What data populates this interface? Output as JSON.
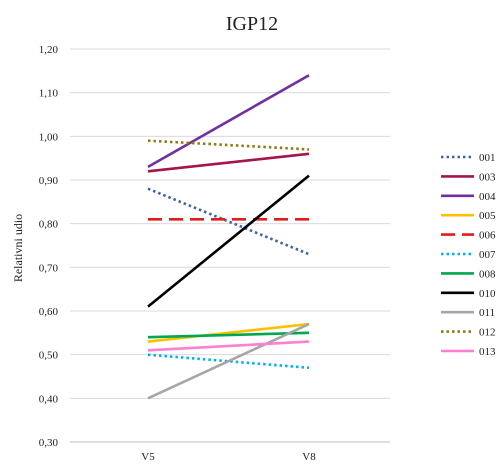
{
  "chart_data": {
    "type": "line",
    "title": "IGP12",
    "xlabel": "",
    "ylabel": "Relativni udio",
    "categories": [
      "V5",
      "V8"
    ],
    "ylim": [
      0.3,
      1.2
    ],
    "ytick_step": 0.1,
    "ytick_labels": [
      "0,30",
      "0,40",
      "0,50",
      "0,60",
      "0,70",
      "0,80",
      "0,90",
      "1,00",
      "1,10",
      "1,20"
    ],
    "grid": true,
    "legend_position": "right",
    "series": [
      {
        "name": "001",
        "values": [
          0.88,
          0.73
        ],
        "color": "#3f63a4",
        "dash": "dotted"
      },
      {
        "name": "003",
        "values": [
          0.92,
          0.96
        ],
        "color": "#a3164d",
        "dash": "solid"
      },
      {
        "name": "004",
        "values": [
          0.93,
          1.14
        ],
        "color": "#7030a0",
        "dash": "solid"
      },
      {
        "name": "005",
        "values": [
          0.53,
          0.57
        ],
        "color": "#ffc000",
        "dash": "solid"
      },
      {
        "name": "006",
        "values": [
          0.81,
          0.81
        ],
        "color": "#e11d1d",
        "dash": "dashed"
      },
      {
        "name": "007",
        "values": [
          0.5,
          0.47
        ],
        "color": "#00b0f0",
        "dash": "dotted"
      },
      {
        "name": "008",
        "values": [
          0.54,
          0.55
        ],
        "color": "#00a650",
        "dash": "solid"
      },
      {
        "name": "010",
        "values": [
          0.61,
          0.91
        ],
        "color": "#000000",
        "dash": "solid"
      },
      {
        "name": "011",
        "values": [
          0.4,
          0.57
        ],
        "color": "#a6a6a6",
        "dash": "solid"
      },
      {
        "name": "012",
        "values": [
          0.99,
          0.97
        ],
        "color": "#8c7a12",
        "dash": "dotted"
      },
      {
        "name": "013",
        "values": [
          0.51,
          0.53
        ],
        "color": "#ff7fd0",
        "dash": "solid"
      }
    ]
  }
}
